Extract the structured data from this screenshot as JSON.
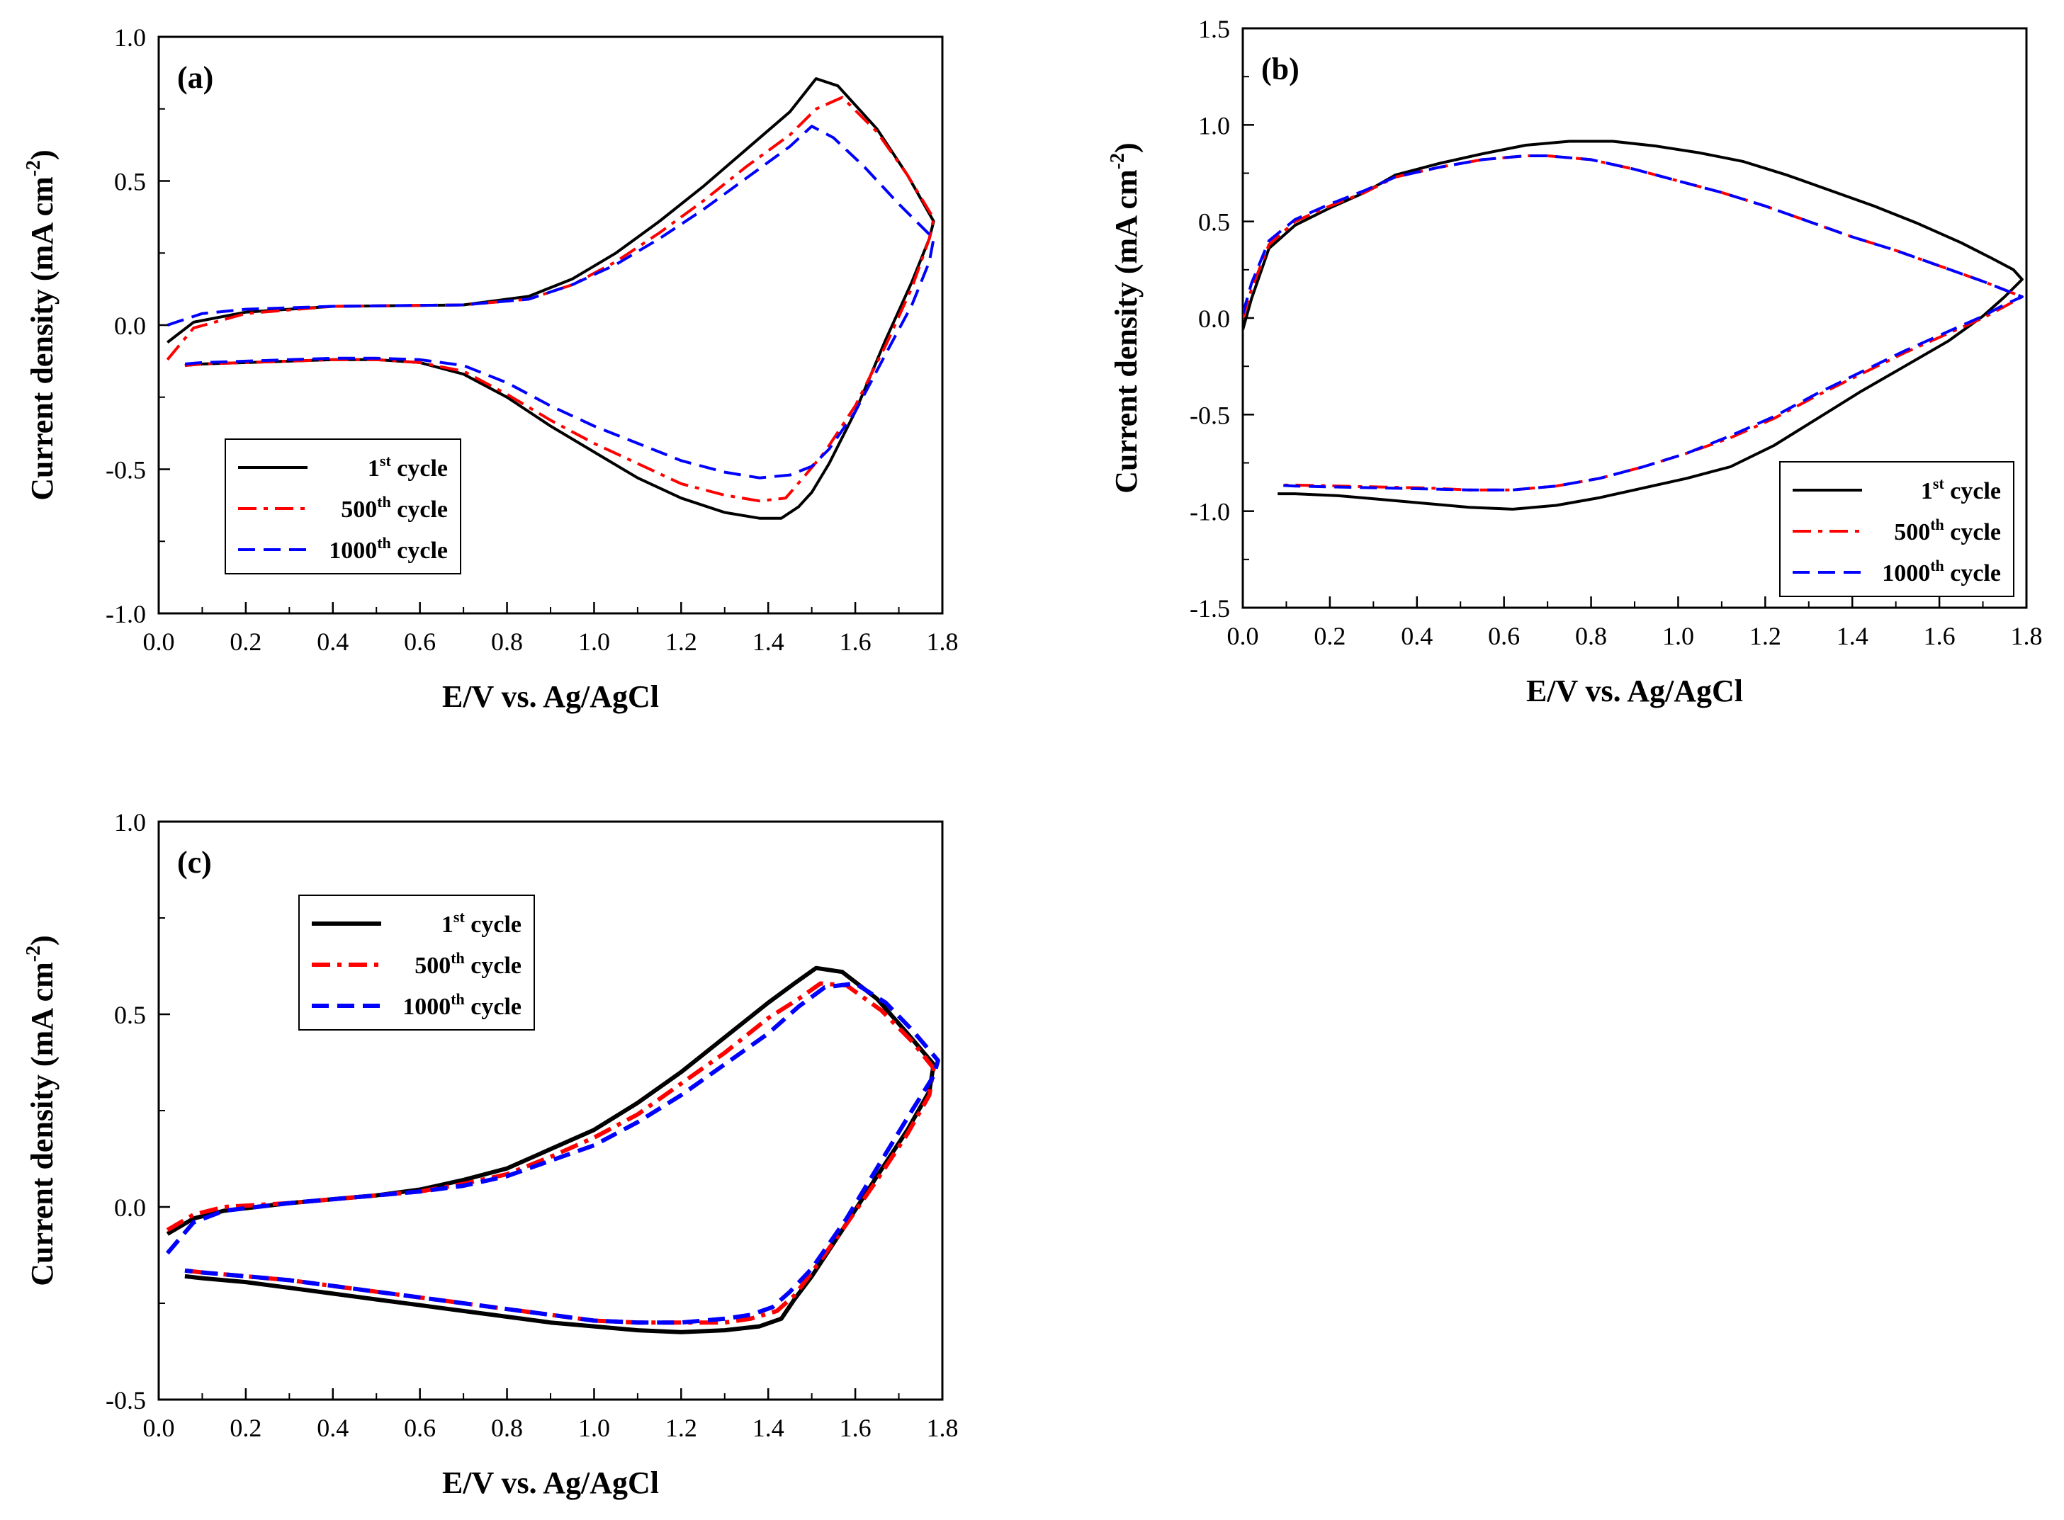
{
  "figure": {
    "chart_data": [
      {
        "type": "line",
        "panel_label": "(a)",
        "xlabel": "E/V vs. Ag/AgCl",
        "ylabel": "Current density (mA cm",
        "ylabel_sup": "-2",
        "ylabel_close": ")",
        "xlim": [
          0.0,
          1.8
        ],
        "ylim": [
          -1.0,
          1.0
        ],
        "xticks": [
          "0.0",
          "0.2",
          "0.4",
          "0.6",
          "0.8",
          "1.0",
          "1.2",
          "1.4",
          "1.6",
          "1.8"
        ],
        "yticks": [
          "-1.0",
          "-0.5",
          "0.0",
          "0.5",
          "1.0"
        ],
        "legend": {
          "placement": "bottom-left"
        },
        "series": [
          {
            "name_main": "1",
            "name_sup": "st",
            "name_rest": " cycle",
            "color": "#000000",
            "dash": "solid",
            "x": [
              0.02,
              0.08,
              0.2,
              0.4,
              0.7,
              0.85,
              0.95,
              1.05,
              1.15,
              1.25,
              1.35,
              1.45,
              1.51,
              1.56,
              1.65,
              1.72,
              1.78,
              1.77,
              1.73,
              1.67,
              1.6,
              1.54,
              1.5,
              1.47,
              1.43,
              1.38,
              1.3,
              1.2,
              1.1,
              1.0,
              0.9,
              0.8,
              0.7,
              0.6,
              0.5,
              0.4,
              0.3,
              0.2,
              0.1,
              0.06
            ],
            "y": [
              -0.06,
              0.01,
              0.045,
              0.065,
              0.07,
              0.1,
              0.16,
              0.25,
              0.36,
              0.48,
              0.61,
              0.74,
              0.855,
              0.83,
              0.68,
              0.52,
              0.36,
              0.3,
              0.15,
              -0.05,
              -0.3,
              -0.48,
              -0.58,
              -0.63,
              -0.67,
              -0.67,
              -0.65,
              -0.6,
              -0.53,
              -0.44,
              -0.35,
              -0.25,
              -0.17,
              -0.13,
              -0.12,
              -0.12,
              -0.125,
              -0.13,
              -0.135,
              -0.14
            ]
          },
          {
            "name_main": "500",
            "name_sup": "th",
            "name_rest": " cycle",
            "color": "#ff0000",
            "dash": "dashdot",
            "x": [
              0.02,
              0.08,
              0.2,
              0.4,
              0.7,
              0.85,
              0.95,
              1.05,
              1.15,
              1.25,
              1.35,
              1.45,
              1.51,
              1.57,
              1.65,
              1.72,
              1.78,
              1.77,
              1.73,
              1.67,
              1.6,
              1.53,
              1.48,
              1.44,
              1.38,
              1.3,
              1.2,
              1.1,
              1.0,
              0.9,
              0.8,
              0.7,
              0.6,
              0.5,
              0.4,
              0.3,
              0.2,
              0.1,
              0.06
            ],
            "y": [
              -0.12,
              -0.01,
              0.04,
              0.065,
              0.07,
              0.09,
              0.14,
              0.22,
              0.32,
              0.43,
              0.55,
              0.66,
              0.75,
              0.79,
              0.67,
              0.52,
              0.37,
              0.3,
              0.13,
              -0.07,
              -0.28,
              -0.44,
              -0.53,
              -0.6,
              -0.61,
              -0.59,
              -0.55,
              -0.48,
              -0.41,
              -0.33,
              -0.24,
              -0.16,
              -0.13,
              -0.12,
              -0.12,
              -0.125,
              -0.13,
              -0.135,
              -0.14
            ]
          },
          {
            "name_main": "1000",
            "name_sup": "th",
            "name_rest": " cycle",
            "color": "#0000ff",
            "dash": "dash",
            "x": [
              0.02,
              0.1,
              0.2,
              0.4,
              0.7,
              0.85,
              0.95,
              1.05,
              1.15,
              1.25,
              1.35,
              1.45,
              1.5,
              1.55,
              1.62,
              1.7,
              1.78,
              1.77,
              1.73,
              1.67,
              1.6,
              1.54,
              1.5,
              1.45,
              1.38,
              1.3,
              1.2,
              1.1,
              1.0,
              0.9,
              0.8,
              0.7,
              0.6,
              0.5,
              0.4,
              0.3,
              0.2,
              0.1,
              0.06
            ],
            "y": [
              0.0,
              0.04,
              0.055,
              0.065,
              0.07,
              0.09,
              0.14,
              0.21,
              0.3,
              0.4,
              0.51,
              0.62,
              0.69,
              0.65,
              0.55,
              0.42,
              0.3,
              0.22,
              0.07,
              -0.1,
              -0.3,
              -0.43,
              -0.49,
              -0.52,
              -0.53,
              -0.51,
              -0.47,
              -0.41,
              -0.35,
              -0.28,
              -0.2,
              -0.14,
              -0.12,
              -0.115,
              -0.115,
              -0.12,
              -0.125,
              -0.13,
              -0.135
            ]
          }
        ]
      },
      {
        "type": "line",
        "panel_label": "(b)",
        "xlabel": "E/V vs. Ag/AgCl",
        "ylabel": "Current density (mA cm",
        "ylabel_sup": "-2",
        "ylabel_close": ")",
        "xlim": [
          0.0,
          1.8
        ],
        "ylim": [
          -1.5,
          1.5
        ],
        "xticks": [
          "0.0",
          "0.2",
          "0.4",
          "0.6",
          "0.8",
          "1.0",
          "1.2",
          "1.4",
          "1.6",
          "1.8"
        ],
        "yticks": [
          "-1.5",
          "-1.0",
          "-0.5",
          "0.0",
          "0.5",
          "1.0",
          "1.5"
        ],
        "legend": {
          "placement": "bottom-right"
        },
        "series": [
          {
            "name_main": "1",
            "name_sup": "st",
            "name_rest": " cycle",
            "color": "#000000",
            "dash": "solid",
            "x": [
              0.0,
              0.02,
              0.06,
              0.12,
              0.2,
              0.28,
              0.35,
              0.45,
              0.55,
              0.65,
              0.75,
              0.85,
              0.95,
              1.05,
              1.15,
              1.25,
              1.35,
              1.45,
              1.55,
              1.65,
              1.72,
              1.77,
              1.79,
              1.75,
              1.7,
              1.62,
              1.52,
              1.42,
              1.32,
              1.22,
              1.12,
              1.02,
              0.92,
              0.82,
              0.72,
              0.62,
              0.52,
              0.42,
              0.32,
              0.22,
              0.12,
              0.08
            ],
            "y": [
              -0.06,
              0.1,
              0.36,
              0.48,
              0.57,
              0.65,
              0.74,
              0.8,
              0.85,
              0.895,
              0.915,
              0.915,
              0.89,
              0.855,
              0.81,
              0.74,
              0.66,
              0.58,
              0.49,
              0.39,
              0.31,
              0.25,
              0.2,
              0.11,
              0.01,
              -0.12,
              -0.25,
              -0.38,
              -0.52,
              -0.66,
              -0.77,
              -0.83,
              -0.88,
              -0.93,
              -0.97,
              -0.99,
              -0.98,
              -0.96,
              -0.94,
              -0.92,
              -0.91,
              -0.91
            ]
          },
          {
            "name_main": "500",
            "name_sup": "th",
            "name_rest": " cycle",
            "color": "#ff0000",
            "dash": "dashdot",
            "x": [
              0.0,
              0.02,
              0.06,
              0.12,
              0.2,
              0.28,
              0.35,
              0.45,
              0.55,
              0.65,
              0.7,
              0.8,
              0.9,
              1.0,
              1.1,
              1.2,
              1.3,
              1.4,
              1.5,
              1.6,
              1.7,
              1.79,
              1.75,
              1.7,
              1.62,
              1.52,
              1.42,
              1.32,
              1.22,
              1.12,
              1.02,
              0.92,
              0.82,
              0.72,
              0.62,
              0.52,
              0.42,
              0.32,
              0.22,
              0.12,
              0.08
            ],
            "y": [
              0.0,
              0.15,
              0.38,
              0.5,
              0.58,
              0.65,
              0.73,
              0.78,
              0.82,
              0.84,
              0.84,
              0.82,
              0.77,
              0.71,
              0.65,
              0.58,
              0.5,
              0.42,
              0.35,
              0.27,
              0.19,
              0.11,
              0.06,
              0.0,
              -0.08,
              -0.18,
              -0.29,
              -0.4,
              -0.52,
              -0.62,
              -0.7,
              -0.77,
              -0.83,
              -0.87,
              -0.89,
              -0.89,
              -0.88,
              -0.875,
              -0.87,
              -0.865,
              -0.865
            ]
          },
          {
            "name_main": "1000",
            "name_sup": "th",
            "name_rest": " cycle",
            "color": "#0000ff",
            "dash": "dash",
            "x": [
              0.0,
              0.02,
              0.06,
              0.12,
              0.2,
              0.28,
              0.35,
              0.45,
              0.55,
              0.65,
              0.7,
              0.8,
              0.9,
              1.0,
              1.1,
              1.2,
              1.3,
              1.4,
              1.5,
              1.6,
              1.7,
              1.79,
              1.75,
              1.7,
              1.62,
              1.52,
              1.42,
              1.32,
              1.22,
              1.12,
              1.02,
              0.92,
              0.82,
              0.72,
              0.62,
              0.52,
              0.42,
              0.32,
              0.22,
              0.12,
              0.08
            ],
            "y": [
              0.02,
              0.18,
              0.4,
              0.51,
              0.59,
              0.66,
              0.73,
              0.78,
              0.82,
              0.84,
              0.84,
              0.82,
              0.77,
              0.71,
              0.65,
              0.58,
              0.5,
              0.42,
              0.35,
              0.27,
              0.19,
              0.11,
              0.07,
              0.01,
              -0.07,
              -0.17,
              -0.28,
              -0.39,
              -0.51,
              -0.61,
              -0.7,
              -0.77,
              -0.83,
              -0.87,
              -0.89,
              -0.89,
              -0.885,
              -0.88,
              -0.875,
              -0.87,
              -0.865
            ]
          }
        ]
      },
      {
        "type": "line",
        "panel_label": "(c)",
        "xlabel": "E/V vs. Ag/AgCl",
        "ylabel": "Current density (mA cm",
        "ylabel_sup": "-2",
        "ylabel_close": ")",
        "xlim": [
          0.0,
          1.8
        ],
        "ylim": [
          -0.5,
          1.0
        ],
        "xticks": [
          "0.0",
          "0.2",
          "0.4",
          "0.6",
          "0.8",
          "1.0",
          "1.2",
          "1.4",
          "1.6",
          "1.8"
        ],
        "yticks": [
          "-0.5",
          "0.0",
          "0.5",
          "1.0"
        ],
        "legend": {
          "placement": "top-left"
        },
        "series": [
          {
            "name_main": "1",
            "name_sup": "st",
            "name_rest": " cycle",
            "color": "#000000",
            "dash": "solid",
            "x": [
              0.02,
              0.08,
              0.15,
              0.3,
              0.4,
              0.5,
              0.6,
              0.7,
              0.8,
              0.9,
              1.0,
              1.1,
              1.2,
              1.3,
              1.4,
              1.46,
              1.51,
              1.57,
              1.65,
              1.72,
              1.78,
              1.77,
              1.72,
              1.65,
              1.57,
              1.5,
              1.46,
              1.43,
              1.38,
              1.3,
              1.2,
              1.1,
              1.0,
              0.9,
              0.8,
              0.7,
              0.6,
              0.5,
              0.4,
              0.3,
              0.2,
              0.1,
              0.06
            ],
            "y": [
              -0.07,
              -0.03,
              -0.01,
              0.01,
              0.02,
              0.03,
              0.045,
              0.07,
              0.1,
              0.15,
              0.2,
              0.27,
              0.35,
              0.44,
              0.53,
              0.58,
              0.62,
              0.61,
              0.54,
              0.45,
              0.37,
              0.3,
              0.2,
              0.08,
              -0.06,
              -0.18,
              -0.24,
              -0.29,
              -0.31,
              -0.32,
              -0.325,
              -0.32,
              -0.31,
              -0.3,
              -0.285,
              -0.27,
              -0.255,
              -0.24,
              -0.225,
              -0.21,
              -0.195,
              -0.185,
              -0.18
            ]
          },
          {
            "name_main": "500",
            "name_sup": "th",
            "name_rest": " cycle",
            "color": "#ff0000",
            "dash": "dashdot",
            "x": [
              0.02,
              0.08,
              0.15,
              0.3,
              0.4,
              0.5,
              0.6,
              0.7,
              0.8,
              0.9,
              1.0,
              1.1,
              1.2,
              1.3,
              1.4,
              1.47,
              1.52,
              1.58,
              1.66,
              1.73,
              1.78,
              1.77,
              1.72,
              1.65,
              1.57,
              1.5,
              1.46,
              1.42,
              1.36,
              1.3,
              1.2,
              1.1,
              1.0,
              0.9,
              0.8,
              0.7,
              0.6,
              0.5,
              0.4,
              0.3,
              0.2,
              0.1,
              0.06
            ],
            "y": [
              -0.06,
              -0.02,
              0.0,
              0.01,
              0.02,
              0.03,
              0.04,
              0.06,
              0.085,
              0.13,
              0.18,
              0.24,
              0.32,
              0.4,
              0.49,
              0.54,
              0.58,
              0.575,
              0.51,
              0.43,
              0.36,
              0.29,
              0.19,
              0.07,
              -0.06,
              -0.17,
              -0.23,
              -0.27,
              -0.29,
              -0.3,
              -0.3,
              -0.3,
              -0.295,
              -0.28,
              -0.265,
              -0.25,
              -0.235,
              -0.22,
              -0.205,
              -0.19,
              -0.18,
              -0.17,
              -0.165
            ]
          },
          {
            "name_main": "1000",
            "name_sup": "th",
            "name_rest": " cycle",
            "color": "#0000ff",
            "dash": "dash",
            "x": [
              0.02,
              0.08,
              0.15,
              0.3,
              0.4,
              0.5,
              0.6,
              0.7,
              0.8,
              0.9,
              1.0,
              1.1,
              1.2,
              1.3,
              1.4,
              1.47,
              1.53,
              1.6,
              1.67,
              1.73,
              1.79,
              1.78,
              1.73,
              1.66,
              1.58,
              1.5,
              1.45,
              1.41,
              1.36,
              1.3,
              1.2,
              1.1,
              1.0,
              0.9,
              0.8,
              0.7,
              0.6,
              0.5,
              0.4,
              0.3,
              0.2,
              0.1,
              0.06
            ],
            "y": [
              -0.12,
              -0.04,
              -0.01,
              0.01,
              0.02,
              0.03,
              0.04,
              0.055,
              0.08,
              0.12,
              0.16,
              0.22,
              0.29,
              0.37,
              0.45,
              0.52,
              0.57,
              0.58,
              0.53,
              0.46,
              0.38,
              0.34,
              0.25,
              0.12,
              -0.03,
              -0.16,
              -0.22,
              -0.26,
              -0.28,
              -0.29,
              -0.3,
              -0.3,
              -0.295,
              -0.28,
              -0.265,
              -0.25,
              -0.235,
              -0.22,
              -0.205,
              -0.19,
              -0.18,
              -0.17,
              -0.165
            ]
          }
        ]
      }
    ]
  }
}
